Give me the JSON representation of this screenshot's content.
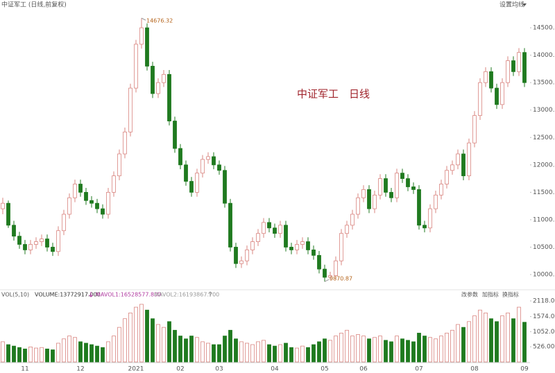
{
  "chart_data": {
    "type": "candlestick",
    "title": "中证军工 (日线,前复权)",
    "menu": "设置均线",
    "watermark": "中证军工　日线",
    "up_color": "#d9847f",
    "down_color": "#1f7a1f",
    "categories": [
      null,
      null,
      null,
      null,
      "11",
      null,
      null,
      null,
      null,
      null,
      null,
      null,
      null,
      null,
      "12",
      null,
      null,
      null,
      null,
      null,
      null,
      null,
      null,
      null,
      "2021",
      null,
      null,
      null,
      null,
      null,
      null,
      null,
      "02",
      null,
      null,
      null,
      null,
      null,
      null,
      "03",
      null,
      null,
      null,
      null,
      null,
      null,
      null,
      null,
      null,
      "04",
      null,
      null,
      null,
      null,
      null,
      null,
      null,
      null,
      "05",
      null,
      null,
      null,
      null,
      null,
      null,
      "06",
      null,
      null,
      null,
      null,
      null,
      null,
      null,
      null,
      null,
      "07",
      null,
      null,
      null,
      null,
      null,
      null,
      null,
      null,
      null,
      "08",
      null,
      null,
      null,
      null,
      null,
      null,
      null,
      null,
      "09"
    ],
    "ohlc": [
      [
        11200,
        11400,
        11100,
        11300
      ],
      [
        11300,
        11350,
        10850,
        10900
      ],
      [
        10900,
        10980,
        10620,
        10700
      ],
      [
        10700,
        10780,
        10470,
        10550
      ],
      [
        10550,
        10630,
        10370,
        10450
      ],
      [
        10450,
        10630,
        10370,
        10550
      ],
      [
        10550,
        10680,
        10470,
        10600
      ],
      [
        10600,
        10730,
        10520,
        10650
      ],
      [
        10650,
        10730,
        10420,
        10500
      ],
      [
        10500,
        10580,
        10340,
        10420
      ],
      [
        10420,
        10880,
        10340,
        10800
      ],
      [
        10800,
        11180,
        10720,
        11100
      ],
      [
        11100,
        11480,
        11020,
        11400
      ],
      [
        11400,
        11730,
        11320,
        11650
      ],
      [
        11650,
        11730,
        11420,
        11500
      ],
      [
        11500,
        11580,
        11270,
        11350
      ],
      [
        11350,
        11430,
        11220,
        11300
      ],
      [
        11300,
        11380,
        11120,
        11200
      ],
      [
        11200,
        11280,
        11020,
        11100
      ],
      [
        11100,
        11580,
        11020,
        11500
      ],
      [
        11500,
        11880,
        11420,
        11800
      ],
      [
        11800,
        12280,
        11720,
        12200
      ],
      [
        12200,
        12680,
        12120,
        12600
      ],
      [
        12600,
        13480,
        12520,
        13400
      ],
      [
        13400,
        14280,
        13320,
        14200
      ],
      [
        14200,
        14676.32,
        14120,
        14500
      ],
      [
        14500,
        14580,
        13720,
        13800
      ],
      [
        13800,
        13880,
        13220,
        13300
      ],
      [
        13300,
        13580,
        13220,
        13500
      ],
      [
        13500,
        13730,
        13420,
        13650
      ],
      [
        13650,
        13730,
        12720,
        12800
      ],
      [
        12800,
        12880,
        12220,
        12300
      ],
      [
        12300,
        12380,
        11920,
        12000
      ],
      [
        12000,
        12080,
        11620,
        11700
      ],
      [
        11700,
        11780,
        11420,
        11500
      ],
      [
        11500,
        11930,
        11420,
        11850
      ],
      [
        11850,
        12180,
        11770,
        12100
      ],
      [
        12100,
        12230,
        12020,
        12150
      ],
      [
        12150,
        12230,
        11920,
        12000
      ],
      [
        12000,
        12080,
        11820,
        11900
      ],
      [
        11900,
        11980,
        11220,
        11300
      ],
      [
        11300,
        11380,
        10420,
        10500
      ],
      [
        10500,
        10580,
        10120,
        10200
      ],
      [
        10200,
        10330,
        10120,
        10250
      ],
      [
        10250,
        10530,
        10170,
        10450
      ],
      [
        10450,
        10680,
        10370,
        10600
      ],
      [
        10600,
        10830,
        10520,
        10750
      ],
      [
        10750,
        11030,
        10670,
        10950
      ],
      [
        10950,
        11030,
        10770,
        10850
      ],
      [
        10850,
        10930,
        10670,
        10750
      ],
      [
        10750,
        10980,
        10670,
        10900
      ],
      [
        10900,
        10980,
        10420,
        10500
      ],
      [
        10500,
        10580,
        10370,
        10450
      ],
      [
        10450,
        10630,
        10370,
        10550
      ],
      [
        10550,
        10680,
        10470,
        10600
      ],
      [
        10600,
        10680,
        10370,
        10450
      ],
      [
        10450,
        10530,
        10270,
        10350
      ],
      [
        10350,
        10430,
        10020,
        10100
      ],
      [
        10100,
        10180,
        9870.87,
        9950
      ],
      [
        9950,
        10050,
        9900,
        9980
      ],
      [
        9980,
        10330,
        9900,
        10250
      ],
      [
        10250,
        10830,
        10170,
        10750
      ],
      [
        10750,
        10980,
        10670,
        10900
      ],
      [
        10900,
        11180,
        10820,
        11100
      ],
      [
        11100,
        11480,
        11020,
        11400
      ],
      [
        11400,
        11630,
        11320,
        11550
      ],
      [
        11550,
        11630,
        11120,
        11200
      ],
      [
        11200,
        11530,
        11120,
        11450
      ],
      [
        11450,
        11830,
        11370,
        11750
      ],
      [
        11750,
        11830,
        11420,
        11500
      ],
      [
        11500,
        11580,
        11320,
        11400
      ],
      [
        11400,
        11930,
        11320,
        11850
      ],
      [
        11850,
        11930,
        11670,
        11750
      ],
      [
        11750,
        11830,
        11520,
        11600
      ],
      [
        11600,
        11680,
        11470,
        11550
      ],
      [
        11550,
        11630,
        10820,
        10900
      ],
      [
        10900,
        10980,
        10770,
        10850
      ],
      [
        10850,
        11280,
        10770,
        11200
      ],
      [
        11200,
        11530,
        11120,
        11450
      ],
      [
        11450,
        11730,
        11370,
        11650
      ],
      [
        11650,
        11980,
        11570,
        11900
      ],
      [
        11900,
        12080,
        11820,
        12000
      ],
      [
        12000,
        12280,
        11920,
        12200
      ],
      [
        12200,
        12280,
        11720,
        11800
      ],
      [
        11800,
        12480,
        11720,
        12400
      ],
      [
        12400,
        12980,
        12320,
        12900
      ],
      [
        12900,
        13580,
        12820,
        13500
      ],
      [
        13500,
        13780,
        13420,
        13700
      ],
      [
        13700,
        13780,
        13320,
        13400
      ],
      [
        13400,
        13480,
        13020,
        13100
      ],
      [
        13100,
        13580,
        13020,
        13500
      ],
      [
        13500,
        13980,
        13420,
        13900
      ],
      [
        13900,
        13980,
        13620,
        13700
      ],
      [
        13700,
        14130,
        13620,
        14050
      ],
      [
        14050,
        14130,
        13420,
        13500
      ]
    ],
    "ylim": [
      9760,
      14817
    ],
    "yticks": [
      {
        "value": 10000,
        "label": "10000.0"
      },
      {
        "value": 10500,
        "label": "10500.0"
      },
      {
        "value": 11000,
        "label": "11000.0"
      },
      {
        "value": 11500,
        "label": "11500.0"
      },
      {
        "value": 12000,
        "label": "12000.0"
      },
      {
        "value": 12500,
        "label": "12500.0"
      },
      {
        "value": 13000,
        "label": "13000.0"
      },
      {
        "value": 13500,
        "label": "13500.0"
      },
      {
        "value": 14000,
        "label": "14000.0"
      },
      {
        "value": 14500,
        "label": "14500.0"
      }
    ],
    "high_label": "14676.32",
    "low_label": "9870.87",
    "volume_panel": {
      "title": "VOL(5,10)",
      "indicators": [
        {
          "label": "VOLUME:13772917.000",
          "color": "#333333"
        },
        {
          "label": "MAVOL1:16528577.800",
          "color": "#b03aa0"
        },
        {
          "label": "MAVOL2:16193867.700",
          "color": "#999999"
        }
      ],
      "buttons": [
        "改参数",
        "加指标",
        "换指标"
      ],
      "values": [
        700,
        600,
        550,
        500,
        450,
        520,
        480,
        500,
        450,
        420,
        650,
        800,
        900,
        850,
        700,
        650,
        600,
        550,
        500,
        700,
        900,
        1200,
        1500,
        1700,
        1900,
        2000,
        1800,
        1500,
        1300,
        1200,
        1400,
        1100,
        900,
        800,
        900,
        850,
        700,
        650,
        600,
        600,
        900,
        1100,
        800,
        700,
        650,
        600,
        700,
        750,
        600,
        550,
        600,
        650,
        500,
        480,
        550,
        500,
        600,
        700,
        800,
        750,
        900,
        1000,
        1100,
        900,
        950,
        900,
        800,
        850,
        900,
        750,
        700,
        900,
        800,
        750,
        700,
        1000,
        900,
        850,
        800,
        900,
        1000,
        1100,
        1300,
        1200,
        1400,
        1600,
        1800,
        1700,
        1500,
        1400,
        1600,
        1700,
        1500,
        1900,
        1377
      ],
      "ylim": [
        0,
        2335
      ],
      "yticks": [
        {
          "value": 526,
          "label": "526.00"
        },
        {
          "value": 1052,
          "label": "1052.00"
        },
        {
          "value": 1574,
          "label": "1574.00"
        },
        {
          "value": 2118,
          "label": "2118.00"
        }
      ]
    }
  }
}
